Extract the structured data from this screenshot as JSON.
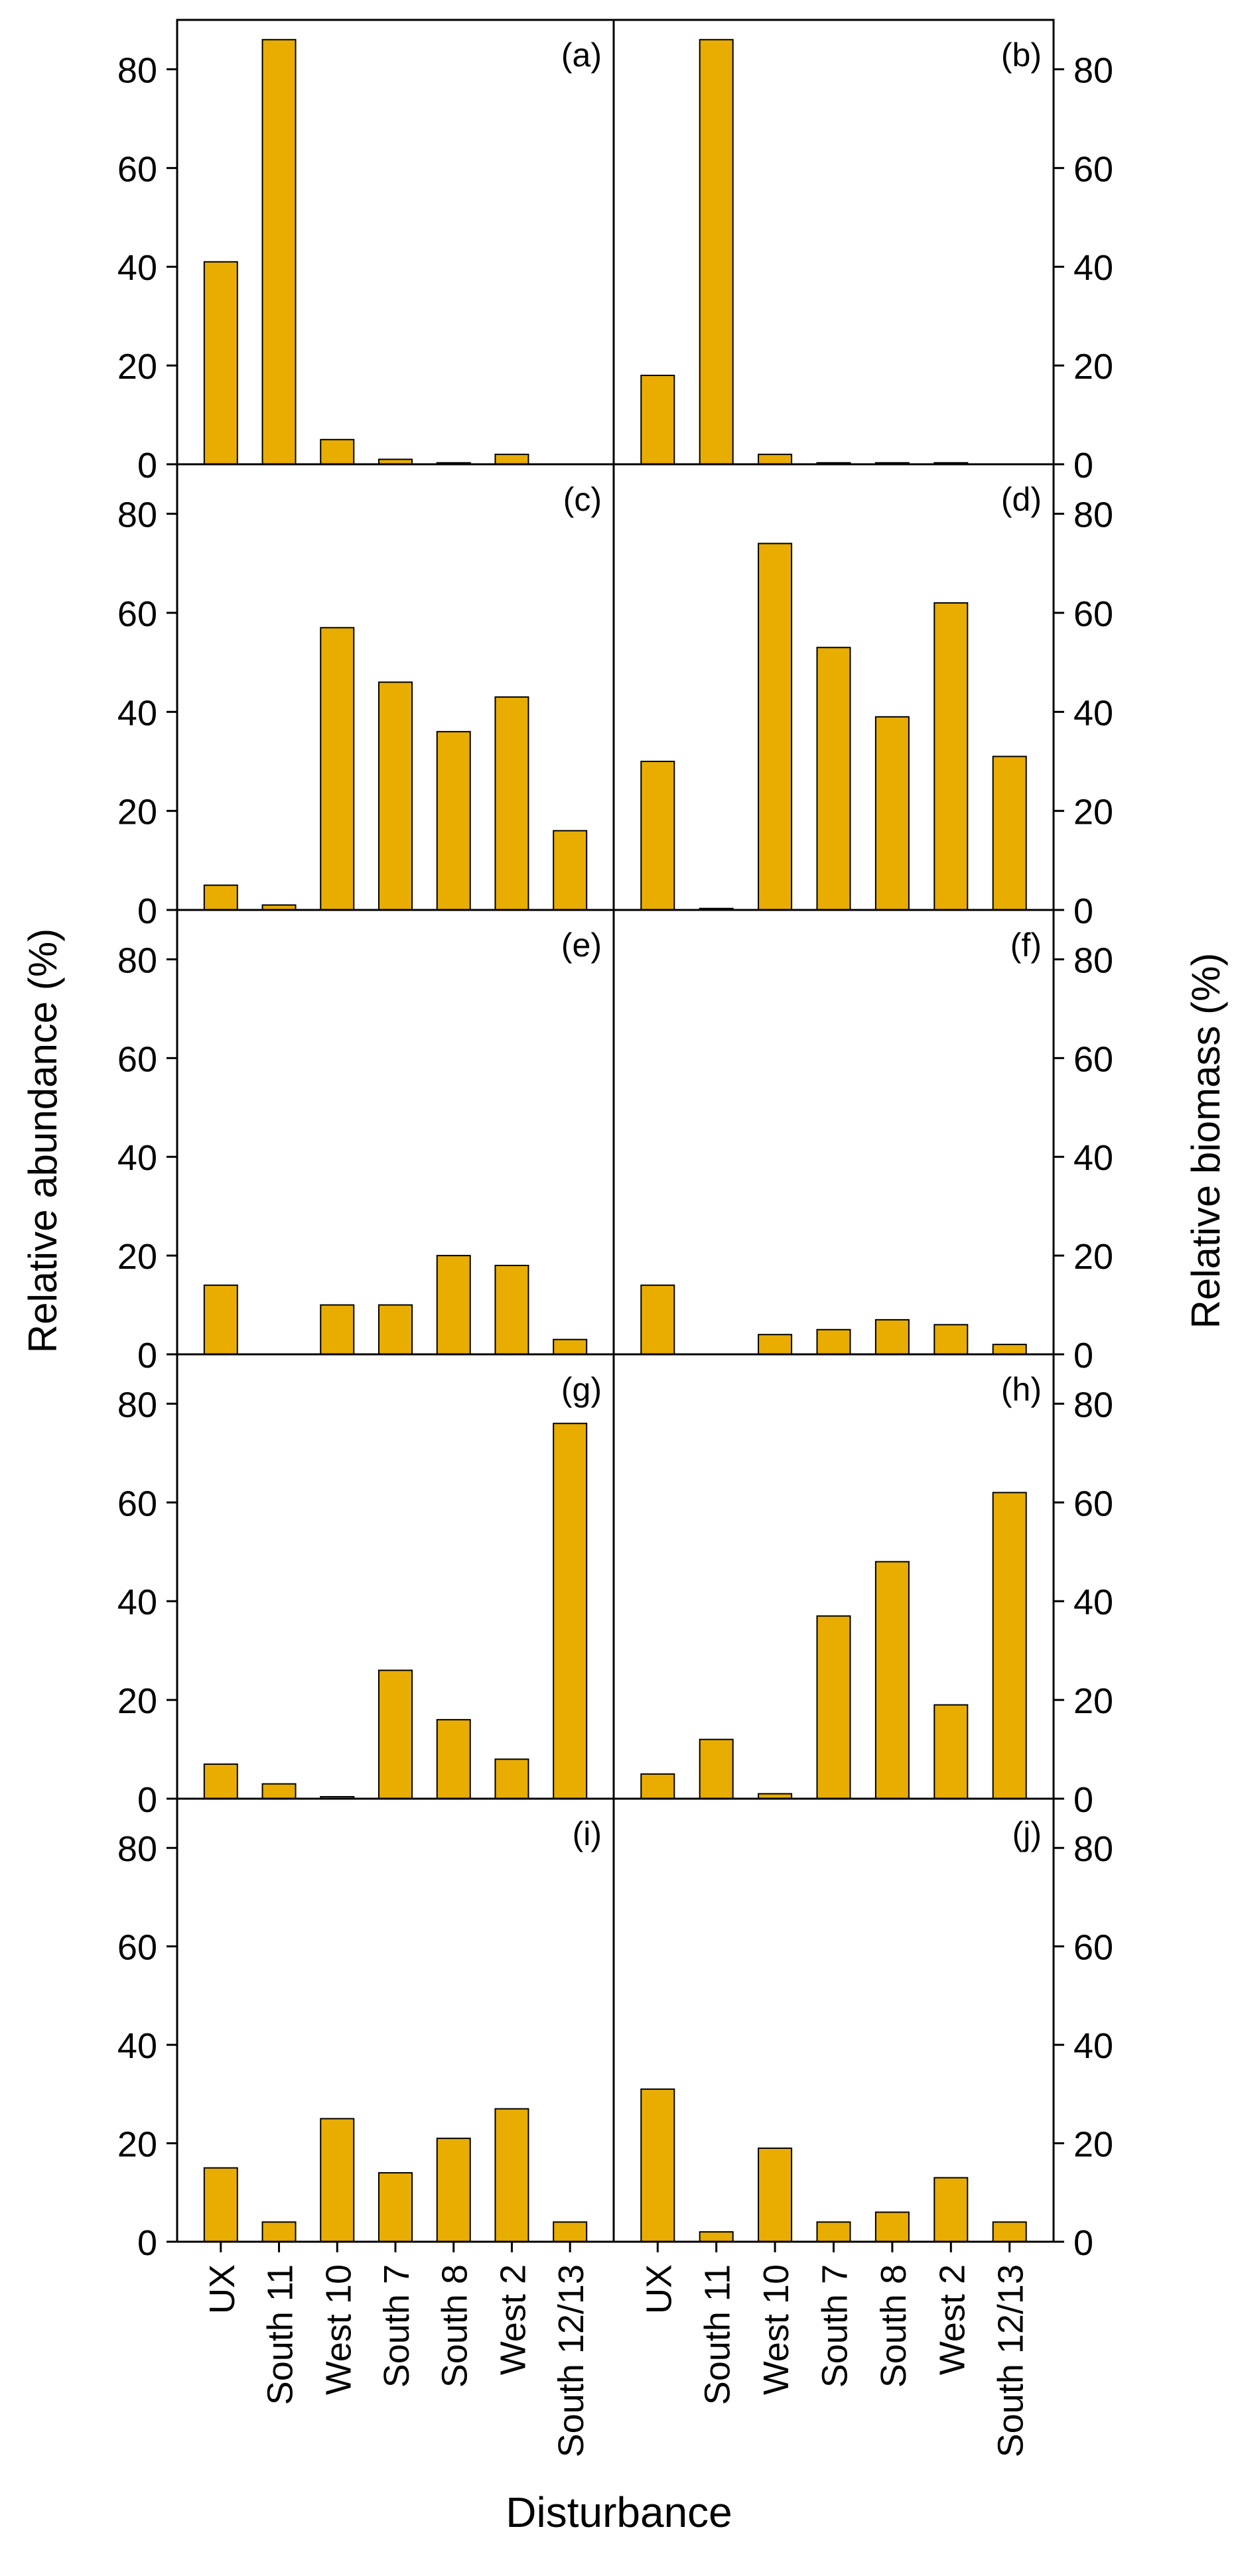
{
  "chart_data": {
    "type": "bar",
    "ylabel_left": "Relative abundance (%)",
    "ylabel_right": "Relative biomass (%)",
    "xlabel": "Disturbance",
    "categories": [
      "UX",
      "South 11",
      "West 10",
      "South 7",
      "South 8",
      "West 2",
      "South 12/13"
    ],
    "ylim": [
      0,
      90
    ],
    "yticks": [
      "0",
      "20",
      "40",
      "60",
      "80"
    ],
    "bar_color": "#e8ad00",
    "panels": [
      {
        "label": "(a)",
        "row": 0,
        "col": 0,
        "values": [
          41,
          86,
          5,
          1,
          0.3,
          2,
          0
        ]
      },
      {
        "label": "(b)",
        "row": 0,
        "col": 1,
        "values": [
          18,
          86,
          2,
          0.3,
          0.3,
          0.3,
          0
        ]
      },
      {
        "label": "(c)",
        "row": 1,
        "col": 0,
        "values": [
          5,
          1,
          57,
          46,
          36,
          43,
          16
        ]
      },
      {
        "label": "(d)",
        "row": 1,
        "col": 1,
        "values": [
          30,
          0.3,
          74,
          53,
          39,
          62,
          31
        ]
      },
      {
        "label": "(e)",
        "row": 2,
        "col": 0,
        "values": [
          14,
          0,
          10,
          10,
          20,
          18,
          3
        ]
      },
      {
        "label": "(f)",
        "row": 2,
        "col": 1,
        "values": [
          14,
          0,
          4,
          5,
          7,
          6,
          2
        ]
      },
      {
        "label": "(g)",
        "row": 3,
        "col": 0,
        "values": [
          7,
          3,
          0.4,
          26,
          16,
          8,
          76
        ]
      },
      {
        "label": "(h)",
        "row": 3,
        "col": 1,
        "values": [
          5,
          12,
          1,
          37,
          48,
          19,
          62
        ]
      },
      {
        "label": "(i)",
        "row": 4,
        "col": 0,
        "values": [
          15,
          4,
          25,
          14,
          21,
          27,
          4
        ]
      },
      {
        "label": "(j)",
        "row": 4,
        "col": 1,
        "values": [
          31,
          2,
          19,
          4,
          6,
          13,
          4
        ]
      }
    ]
  }
}
